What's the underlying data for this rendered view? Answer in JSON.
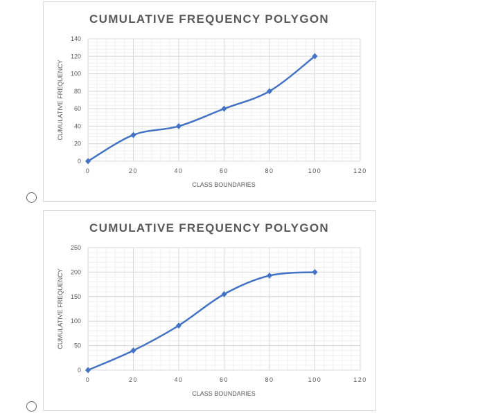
{
  "chart_data": [
    {
      "type": "line",
      "title": "CUMULATIVE FREQUENCY POLYGON",
      "xlabel": "CLASS BOUNDARIES",
      "ylabel": "CUMULATIVE FREQUENCY",
      "x": [
        0,
        20,
        40,
        60,
        80,
        100
      ],
      "series": [
        {
          "name": "Cumulative frequency",
          "values": [
            0,
            30,
            40,
            60,
            80,
            120
          ]
        }
      ],
      "xlim": [
        0,
        120
      ],
      "ylim": [
        0,
        140
      ],
      "xticks": [
        "0",
        "20",
        "40",
        "60",
        "80",
        "100",
        "120"
      ],
      "yticks": [
        "0",
        "20",
        "40",
        "60",
        "80",
        "100",
        "120",
        "140"
      ],
      "grid": true,
      "smooth": true,
      "color": "#4472c4"
    },
    {
      "type": "line",
      "title": "CUMULATIVE FREQUENCY POLYGON",
      "xlabel": "CLASS BOUNDARIES",
      "ylabel": "CUMULATIVE FREQUENCY",
      "x": [
        0,
        20,
        40,
        60,
        80,
        100
      ],
      "series": [
        {
          "name": "Cumulative frequency",
          "values": [
            0,
            40,
            91,
            155,
            193,
            200
          ]
        }
      ],
      "xlim": [
        0,
        120
      ],
      "ylim": [
        0,
        250
      ],
      "xticks": [
        "0",
        "20",
        "40",
        "60",
        "80",
        "100",
        "120"
      ],
      "yticks": [
        "0",
        "50",
        "100",
        "150",
        "200",
        "250"
      ],
      "grid": true,
      "smooth": true,
      "color": "#4472c4"
    }
  ]
}
